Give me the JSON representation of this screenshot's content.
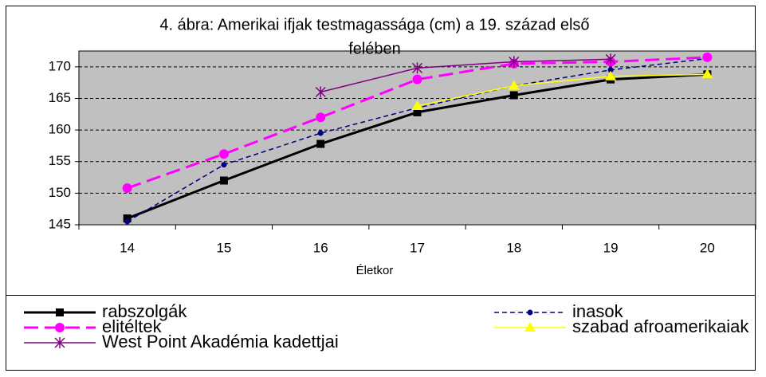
{
  "chart_data": {
    "type": "line",
    "title": [
      "4. ábra: Amerikai ifjak testmagassága (cm) a 19. század első",
      "felében"
    ],
    "x_label": "Életkor",
    "categories": [
      14,
      15,
      16,
      17,
      18,
      19,
      20
    ],
    "ylim": [
      145,
      172.5
    ],
    "yticks": [
      145,
      150,
      155,
      160,
      165,
      170
    ],
    "grid": true,
    "legend": "bottom",
    "series": [
      {
        "name": "rabszolgák",
        "color": "#000000",
        "marker": "square",
        "dash": "solid",
        "width": 3,
        "values": [
          146,
          152,
          157.8,
          162.8,
          165.5,
          168,
          168.8
        ]
      },
      {
        "name": "inasok",
        "color": "#000080",
        "marker": "circle-small",
        "dash": "dashed",
        "width": 1.5,
        "values": [
          145.5,
          154.5,
          159.5,
          163.5,
          167,
          169.5,
          171.3
        ]
      },
      {
        "name": "elitéltek",
        "color": "#ff00ff",
        "marker": "circle",
        "dash": "long-dashed",
        "width": 3,
        "values": [
          150.8,
          156.2,
          162,
          168,
          170.5,
          170.8,
          171.5
        ]
      },
      {
        "name": "szabad afroamerikaiak",
        "color": "#ffff00",
        "marker": "triangle",
        "dash": "solid",
        "width": 1.5,
        "values": [
          null,
          null,
          null,
          163.8,
          167,
          168.5,
          168.8
        ]
      },
      {
        "name": "West Point Akadémia kadettjai",
        "color": "#800080",
        "marker": "asterisk",
        "dash": "solid",
        "width": 1.5,
        "values": [
          null,
          null,
          166,
          169.8,
          170.8,
          171.2,
          null
        ]
      }
    ]
  }
}
